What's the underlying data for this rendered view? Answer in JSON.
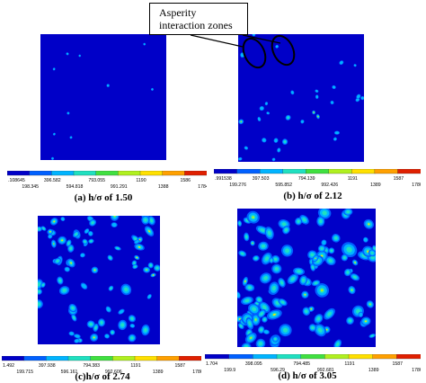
{
  "figure": {
    "annotation": {
      "line1": "Asperity",
      "line2": "interaction zones"
    },
    "colormap": [
      "#0000c8",
      "#0060ff",
      "#00b4ff",
      "#20e0c0",
      "#40e040",
      "#b0f020",
      "#ffe000",
      "#ffa000",
      "#e02000"
    ],
    "panels": [
      {
        "id": "a",
        "caption": "(a) h/σ of 1.50",
        "density": 0.04,
        "colorbar": {
          "top": [
            ".108645",
            "396.582",
            "793.055",
            "1190",
            "1586"
          ],
          "bottom": [
            "198.345",
            "594.818",
            "991.291",
            "1388",
            "1784"
          ]
        }
      },
      {
        "id": "b",
        "caption": "(b) h/σ of 2.12",
        "density": 0.12,
        "colorbar": {
          "top": [
            ".991538",
            "397.503",
            "794.139",
            "1191",
            "1587"
          ],
          "bottom": [
            "199.276",
            "595.852",
            "992.426",
            "1389",
            "1786"
          ]
        }
      },
      {
        "id": "c",
        "caption": "(c)h/σ of 2.74",
        "density": 0.3,
        "colorbar": {
          "top": [
            "1.492",
            "397.938",
            "794.383",
            "1191",
            "1587"
          ],
          "bottom": [
            "199.715",
            "596.161",
            "992.606",
            "1389",
            "1786"
          ]
        }
      },
      {
        "id": "d",
        "caption": "(d) h/σ of 3.05",
        "density": 0.42,
        "colorbar": {
          "top": [
            "1.704",
            "398.095",
            "794.485",
            "1191",
            "1587"
          ],
          "bottom": [
            "199.9",
            "596.29",
            "992.681",
            "1389",
            "1786"
          ]
        }
      }
    ]
  }
}
